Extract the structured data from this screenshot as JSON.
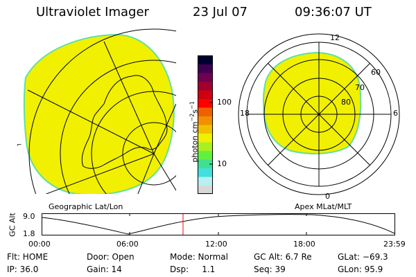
{
  "header": {
    "instrument": "Ultraviolet Imager",
    "date": "23 Jul 07",
    "time": "09:36:07 UT"
  },
  "geo_panel": {
    "caption": "Geographic Lat/Lon"
  },
  "colorbar": {
    "unit_label": "photon cm",
    "unit_sup1": "−2",
    "unit_mid": "s",
    "unit_sup2": "−1",
    "tick_100": "100",
    "tick_10": "10",
    "colors": [
      "#d8d8d8",
      "#b8f0f0",
      "#40e0e0",
      "#40e090",
      "#60f040",
      "#a8f020",
      "#f0f000",
      "#f0c000",
      "#f09000",
      "#f06000",
      "#ff0000",
      "#d00010",
      "#a00030",
      "#700050",
      "#400050",
      "#000030"
    ]
  },
  "polar_panel": {
    "caption": "Apex MLat/MLT",
    "mlt_12": "12",
    "mlt_18": "18",
    "mlt_6": "6",
    "mlt_0": "0",
    "mlat_60": "60",
    "mlat_70": "70",
    "mlat_80": "80"
  },
  "altitude_plot": {
    "ylabel": "GC Alt",
    "y_top": "9.0",
    "y_bottom": "1.8",
    "x_ticks": [
      "00:00",
      "06:00",
      "12:00",
      "18:00",
      "23:59"
    ]
  },
  "info": {
    "flt": "Flt: HOME",
    "ip": "IP: 36.0",
    "door": "Door: Open",
    "gain": "Gain: 14",
    "mode": "Mode: Normal",
    "dsp": "Dsp:     1.1",
    "gc_alt": "GC Alt: 6.7 Re",
    "seq": "Seq: 39",
    "glat": "GLat: −69.3",
    "glon": "GLon: 95.9"
  },
  "colors": {
    "image_fill": "#f0f000",
    "image_edge": "#60e0a0",
    "current_time_marker": "#ff0000",
    "line": "#000000"
  }
}
